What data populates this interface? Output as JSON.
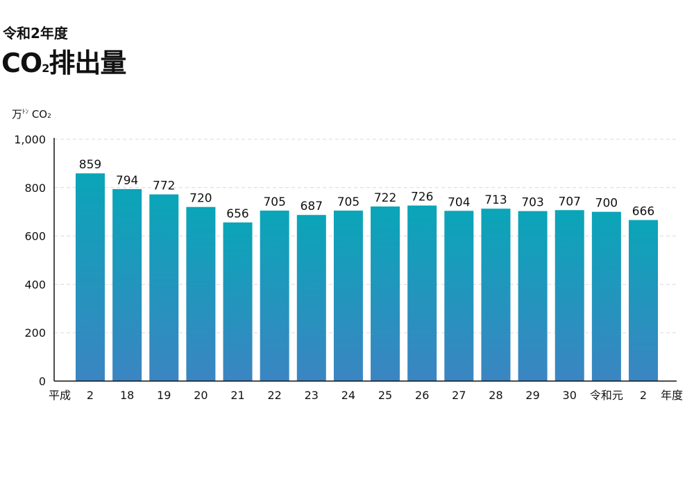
{
  "header": {
    "subtitle": "令和2年度",
    "title_main": "CO",
    "title_sub": "2",
    "title_rest": "排出量"
  },
  "unit": {
    "prefix": "万",
    "small": "ﾄﾝ",
    "co": "CO",
    "sub": "2"
  },
  "colors": {
    "bar_top": "#0aa5b8",
    "bar_bottom": "#3b85c2",
    "grid": "#d8d8d8",
    "axis": "#111111"
  },
  "chart_data": {
    "type": "bar",
    "categories": [
      "2",
      "18",
      "19",
      "20",
      "21",
      "22",
      "23",
      "24",
      "25",
      "26",
      "27",
      "28",
      "29",
      "30",
      "令和元",
      "2"
    ],
    "values": [
      859,
      794,
      772,
      720,
      656,
      705,
      687,
      705,
      722,
      726,
      704,
      713,
      703,
      707,
      700,
      666
    ],
    "era_label": "平成",
    "x_end_label": "年度",
    "ylabel": "万ﾄﾝCO2",
    "ylim": [
      0,
      1000
    ],
    "yticks": [
      "0",
      "200",
      "400",
      "600",
      "800",
      "1,000"
    ],
    "grid": true,
    "grid_style": "dashed"
  }
}
